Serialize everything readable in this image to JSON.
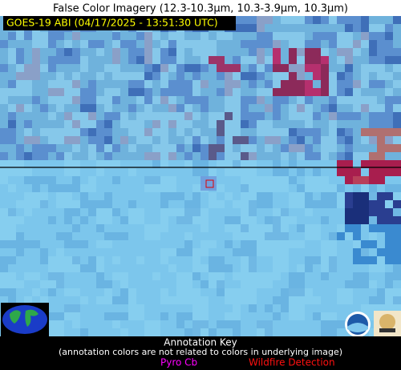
{
  "header": {
    "title": "False Color Imagery (12.3-10.3µm, 10.3-3.9µm, 10.3µm)",
    "subtitle": "GOES-19 ABI (04/17/2025 - 13:51:30 UTC)"
  },
  "footer": {
    "title": "Annotation Key",
    "note": "(annotation colors are not related to colors in underlying image)",
    "legend": [
      "Pyro Cb",
      "Wildfire Detection"
    ]
  }
}
